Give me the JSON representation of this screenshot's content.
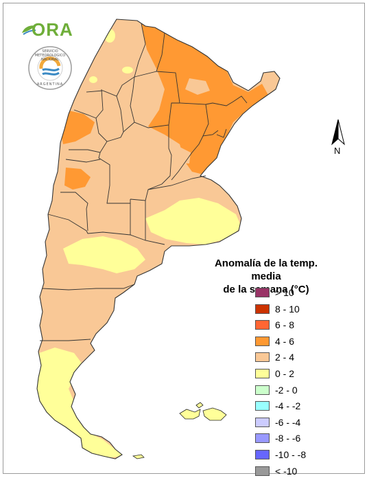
{
  "legend": {
    "title_line1": "Anomalía de la temp. media",
    "title_line2": "de la semana (°C)",
    "items": [
      {
        "label": "> 10",
        "color": "#993366"
      },
      {
        "label": "8 - 10",
        "color": "#cc3300"
      },
      {
        "label": "6 - 8",
        "color": "#ff6633"
      },
      {
        "label": "4 - 6",
        "color": "#ff9933"
      },
      {
        "label": "2 - 4",
        "color": "#f9c896"
      },
      {
        "label": "0 - 2",
        "color": "#ffff99"
      },
      {
        "label": "-2 - 0",
        "color": "#ccffcc"
      },
      {
        "label": "-4 - -2",
        "color": "#99ffff"
      },
      {
        "label": "-6 - -4",
        "color": "#ccccff"
      },
      {
        "label": "-8 - -6",
        "color": "#9999ff"
      },
      {
        "label": "-10 - -8",
        "color": "#6666ff"
      },
      {
        "label": "< -10",
        "color": "#999999"
      }
    ]
  },
  "logos": {
    "ora": "ORA",
    "smn_ring": "SERVICIO METEOROLOGICO NACIONAL",
    "smn_country": "ARGENTINA"
  },
  "north_arrow": {
    "letter": "N"
  },
  "colors": {
    "warm_4_6": "#ff9933",
    "warm_2_4": "#f9c896",
    "neutral_0_2": "#ffff99",
    "border": "#333333"
  }
}
